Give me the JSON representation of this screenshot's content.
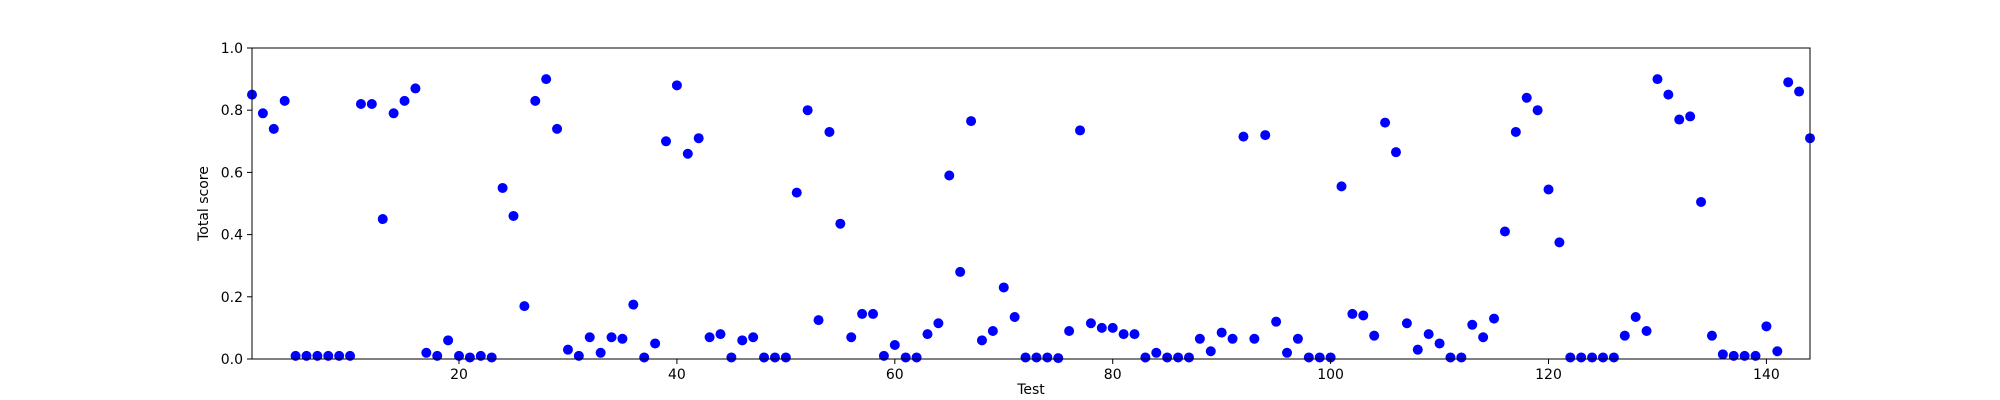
{
  "chart_data": {
    "type": "scatter",
    "xlabel": "Test",
    "ylabel": "Total score",
    "xlim": [
      1,
      144
    ],
    "ylim": [
      0.0,
      1.0
    ],
    "xticks": [
      20,
      40,
      60,
      80,
      100,
      120,
      140
    ],
    "yticks": [
      0.0,
      0.2,
      0.4,
      0.6,
      0.8,
      1.0
    ],
    "ytick_labels": [
      "0.0",
      "0.2",
      "0.4",
      "0.6",
      "0.8",
      "1.0"
    ],
    "grid": false,
    "marker_color": "#0000ff",
    "series": [
      {
        "x": [
          1,
          2,
          3,
          4,
          5,
          6,
          7,
          8,
          9,
          10,
          11,
          12,
          13,
          14,
          15,
          16,
          17,
          18,
          19,
          20,
          21,
          22,
          23,
          24,
          25,
          26,
          27,
          28,
          29,
          30,
          31,
          32,
          33,
          34,
          35,
          36,
          37,
          38,
          39,
          40,
          41,
          42,
          43,
          44,
          45,
          46,
          47,
          48,
          49,
          50,
          51,
          52,
          53,
          54,
          55,
          56,
          57,
          58,
          59,
          60,
          61,
          62,
          63,
          64,
          65,
          66,
          67,
          68,
          69,
          70,
          71,
          72,
          73,
          74,
          75,
          76,
          77,
          78,
          79,
          80,
          81,
          82,
          83,
          84,
          85,
          86,
          87,
          88,
          89,
          90,
          91,
          92,
          93,
          94,
          95,
          96,
          97,
          98,
          99,
          100,
          101,
          102,
          103,
          104,
          105,
          106,
          107,
          108,
          109,
          110,
          111,
          112,
          113,
          114,
          115,
          116,
          117,
          118,
          119,
          120,
          121,
          122,
          123,
          124,
          125,
          126,
          127,
          128,
          129,
          130,
          131,
          132,
          133,
          134,
          135,
          136,
          137,
          138,
          139,
          140,
          141,
          142,
          143,
          144
        ],
        "y": [
          0.85,
          0.79,
          0.74,
          0.83,
          0.01,
          0.01,
          0.01,
          0.01,
          0.01,
          0.01,
          0.82,
          0.82,
          0.45,
          0.79,
          0.83,
          0.87,
          0.02,
          0.01,
          0.06,
          0.01,
          0.005,
          0.01,
          0.005,
          0.55,
          0.46,
          0.17,
          0.83,
          0.9,
          0.74,
          0.03,
          0.01,
          0.07,
          0.02,
          0.07,
          0.065,
          0.175,
          0.005,
          0.05,
          0.7,
          0.88,
          0.66,
          0.71,
          0.07,
          0.08,
          0.005,
          0.06,
          0.07,
          0.005,
          0.005,
          0.005,
          0.535,
          0.8,
          0.125,
          0.73,
          0.435,
          0.07,
          0.145,
          0.145,
          0.01,
          0.045,
          0.005,
          0.005,
          0.08,
          0.115,
          0.59,
          0.28,
          0.765,
          0.06,
          0.09,
          0.23,
          0.135,
          0.005,
          0.005,
          0.005,
          0.003,
          0.09,
          0.735,
          0.115,
          0.1,
          0.1,
          0.08,
          0.08,
          0.005,
          0.02,
          0.005,
          0.005,
          0.005,
          0.065,
          0.025,
          0.085,
          0.065,
          0.715,
          0.065,
          0.72,
          0.12,
          0.02,
          0.065,
          0.005,
          0.005,
          0.005,
          0.555,
          0.145,
          0.14,
          0.075,
          0.76,
          0.665,
          0.115,
          0.03,
          0.08,
          0.05,
          0.005,
          0.005,
          0.11,
          0.07,
          0.13,
          0.41,
          0.73,
          0.84,
          0.8,
          0.545,
          0.375,
          0.005,
          0.005,
          0.005,
          0.005,
          0.005,
          0.075,
          0.135,
          0.09,
          0.9,
          0.85,
          0.77,
          0.78,
          0.505,
          0.075,
          0.015,
          0.01,
          0.01,
          0.01,
          0.105,
          0.025,
          0.89,
          0.86,
          0.71
        ]
      }
    ]
  }
}
